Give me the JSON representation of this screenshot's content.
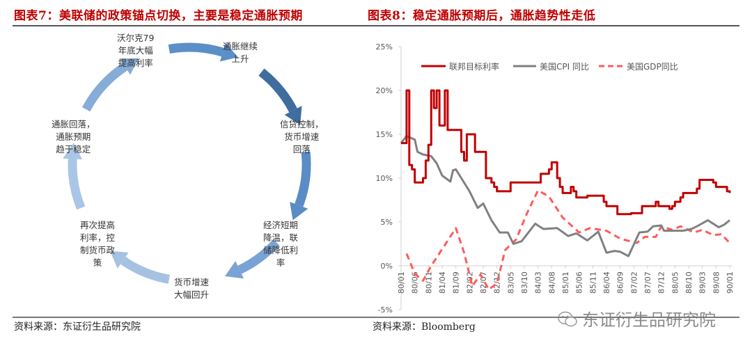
{
  "left": {
    "title": "图表7：美联储的政策锚点切换，主要是稳定通胀预期",
    "source": "资料来源：东证衍生品研究院",
    "cycle_nodes": [
      "沃尔克79\n年底大幅\n提高利率",
      "通胀继续\n上升",
      "信贷控制，\n货币增速\n回落",
      "经济短期\n降温，联\n储降低利\n率",
      "货币增速\n大幅回升",
      "再次提高\n利率，控\n制货币政\n策",
      "通胀回落，\n通胀预期\n趋于稳定"
    ],
    "arrow_colors": [
      "#5b8fc7",
      "#3f6e9e",
      "#5a8cc6",
      "#7aa3d5",
      "#a6c2e3",
      "#a9c6e6",
      "#86acd8"
    ]
  },
  "right": {
    "title": "图表8：稳定通胀预期后，通胀趋势性走低",
    "source": "资料来源：Bloomberg"
  },
  "watermark": {
    "text": "东证衍生品研究院",
    "icon": "wechat-icon"
  },
  "chart_data": {
    "type": "line",
    "ylim": [
      -5,
      25
    ],
    "yticks": [
      "-5%",
      "0%",
      "5%",
      "10%",
      "15%",
      "20%",
      "25%"
    ],
    "ytick_values": [
      -5,
      0,
      5,
      10,
      15,
      20,
      25
    ],
    "xlim": [
      "80/01",
      "90/01"
    ],
    "xticks": [
      "80/01",
      "80/06",
      "80/11",
      "81/04",
      "81/09",
      "82/02",
      "82/07",
      "82/12",
      "83/05",
      "83/10",
      "84/03",
      "84/08",
      "85/01",
      "85/06",
      "85/11",
      "86/04",
      "86/09",
      "87/02",
      "87/07",
      "87/12",
      "88/05",
      "88/10",
      "89/03",
      "89/08",
      "90/01"
    ],
    "legend_position": "top",
    "grid": false,
    "series": [
      {
        "name": "联邦目标利率",
        "color": "#c00000",
        "style": "solid",
        "points": [
          [
            "80/01",
            14
          ],
          [
            "80/02",
            14
          ],
          [
            "80/03",
            20
          ],
          [
            "80/04",
            11.5
          ],
          [
            "80/05",
            11
          ],
          [
            "80/06",
            9.5
          ],
          [
            "80/08",
            9.5
          ],
          [
            "80/09",
            10
          ],
          [
            "80/10",
            12
          ],
          [
            "80/11",
            13.8
          ],
          [
            "80/12",
            20
          ],
          [
            "81/01",
            18
          ],
          [
            "81/02",
            20
          ],
          [
            "81/03",
            16
          ],
          [
            "81/04",
            16
          ],
          [
            "81/05",
            20
          ],
          [
            "81/06",
            15.5
          ],
          [
            "81/10",
            15.5
          ],
          [
            "81/11",
            13
          ],
          [
            "81/12",
            12
          ],
          [
            "82/01",
            15
          ],
          [
            "82/03",
            15
          ],
          [
            "82/04",
            13
          ],
          [
            "82/07",
            13
          ],
          [
            "82/08",
            10
          ],
          [
            "82/09",
            10
          ],
          [
            "82/10",
            9.5
          ],
          [
            "82/11",
            9
          ],
          [
            "82/12",
            8.5
          ],
          [
            "83/04",
            8.5
          ],
          [
            "83/05",
            9.5
          ],
          [
            "84/03",
            9.5
          ],
          [
            "84/04",
            10.5
          ],
          [
            "84/06",
            10.5
          ],
          [
            "84/07",
            11
          ],
          [
            "84/08",
            11.8
          ],
          [
            "84/09",
            11.8
          ],
          [
            "84/10",
            10
          ],
          [
            "84/11",
            9
          ],
          [
            "84/12",
            8.3
          ],
          [
            "85/02",
            8.3
          ],
          [
            "85/03",
            9
          ],
          [
            "85/04",
            8.5
          ],
          [
            "85/05",
            7.8
          ],
          [
            "85/08",
            7.8
          ],
          [
            "85/09",
            8
          ],
          [
            "86/02",
            8
          ],
          [
            "86/03",
            7.3
          ],
          [
            "86/04",
            6.8
          ],
          [
            "86/07",
            6.8
          ],
          [
            "86/08",
            5.9
          ],
          [
            "86/12",
            5.9
          ],
          [
            "87/01",
            6
          ],
          [
            "87/04",
            6
          ],
          [
            "87/05",
            6.8
          ],
          [
            "87/09",
            6.8
          ],
          [
            "87/10",
            7.3
          ],
          [
            "87/11",
            6.8
          ],
          [
            "88/02",
            6.8
          ],
          [
            "88/03",
            6.5
          ],
          [
            "88/04",
            6.8
          ],
          [
            "88/05",
            7.3
          ],
          [
            "88/07",
            7.8
          ],
          [
            "88/08",
            8.3
          ],
          [
            "88/11",
            8.3
          ],
          [
            "89/01",
            8.8
          ],
          [
            "89/02",
            9.8
          ],
          [
            "89/06",
            9.8
          ],
          [
            "89/07",
            9.5
          ],
          [
            "89/08",
            9
          ],
          [
            "89/11",
            9
          ],
          [
            "89/12",
            8.5
          ],
          [
            "90/01",
            8.3
          ]
        ]
      },
      {
        "name": "美国CPI 同比",
        "color": "#808080",
        "style": "solid",
        "points": [
          [
            "80/01",
            14
          ],
          [
            "80/03",
            14.8
          ],
          [
            "80/06",
            14.4
          ],
          [
            "80/07",
            13
          ],
          [
            "80/09",
            12.7
          ],
          [
            "80/12",
            12.5
          ],
          [
            "81/02",
            11.7
          ],
          [
            "81/04",
            10.3
          ],
          [
            "81/07",
            9.6
          ],
          [
            "81/08",
            10.9
          ],
          [
            "81/09",
            11
          ],
          [
            "81/11",
            10
          ],
          [
            "82/02",
            8.5
          ],
          [
            "82/05",
            6.6
          ],
          [
            "82/07",
            7.1
          ],
          [
            "82/10",
            5.2
          ],
          [
            "83/01",
            3.8
          ],
          [
            "83/04",
            3.8
          ],
          [
            "83/06",
            2.5
          ],
          [
            "83/09",
            2.8
          ],
          [
            "84/02",
            4.8
          ],
          [
            "84/05",
            4.2
          ],
          [
            "84/10",
            4.3
          ],
          [
            "85/02",
            3.4
          ],
          [
            "85/05",
            3.7
          ],
          [
            "85/09",
            2.9
          ],
          [
            "86/01",
            3.9
          ],
          [
            "86/04",
            1.5
          ],
          [
            "86/07",
            1.7
          ],
          [
            "86/09",
            1.6
          ],
          [
            "86/12",
            1.1
          ],
          [
            "87/04",
            3.8
          ],
          [
            "87/07",
            3.9
          ],
          [
            "87/09",
            4.5
          ],
          [
            "87/12",
            4.6
          ],
          [
            "88/01",
            4
          ],
          [
            "88/08",
            4
          ],
          [
            "88/11",
            4.2
          ],
          [
            "89/01",
            4.5
          ],
          [
            "89/05",
            5.2
          ],
          [
            "89/09",
            4.4
          ],
          [
            "89/11",
            4.7
          ],
          [
            "90/01",
            5.2
          ]
        ]
      },
      {
        "name": "美国GDP同比",
        "color": "#ff5b5b",
        "style": "dashed",
        "points": [
          [
            "80/03",
            1.4
          ],
          [
            "80/06",
            -0.9
          ],
          [
            "80/09",
            -1.7
          ],
          [
            "80/12",
            0
          ],
          [
            "81/09",
            4.3
          ],
          [
            "81/12",
            1.5
          ],
          [
            "82/03",
            -2.3
          ],
          [
            "82/06",
            -1
          ],
          [
            "82/09",
            -2.7
          ],
          [
            "82/12",
            -2
          ],
          [
            "83/03",
            1.8
          ],
          [
            "83/07",
            3
          ],
          [
            "83/11",
            6
          ],
          [
            "84/03",
            8.6
          ],
          [
            "84/07",
            7.9
          ],
          [
            "84/12",
            5.5
          ],
          [
            "85/06",
            3.8
          ],
          [
            "85/10",
            4.3
          ],
          [
            "86/04",
            4
          ],
          [
            "86/09",
            3.1
          ],
          [
            "87/03",
            2.6
          ],
          [
            "87/06",
            3.3
          ],
          [
            "87/10",
            3.3
          ],
          [
            "87/12",
            4.5
          ],
          [
            "88/04",
            4.1
          ],
          [
            "88/07",
            4.5
          ],
          [
            "88/12",
            3.8
          ],
          [
            "89/03",
            4.1
          ],
          [
            "89/07",
            3.5
          ],
          [
            "89/10",
            3.6
          ],
          [
            "90/01",
            2.6
          ]
        ]
      }
    ]
  }
}
